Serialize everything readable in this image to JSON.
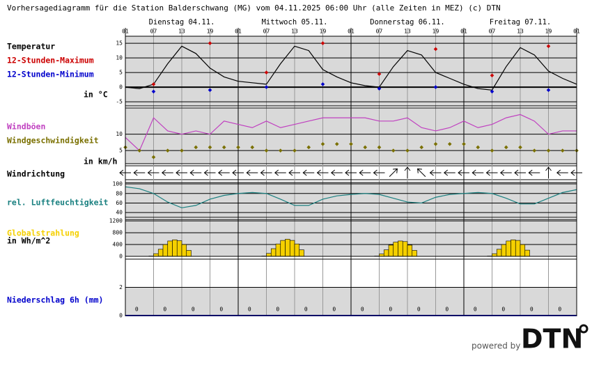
{
  "title": "Vorhersagediagramm für die Station Balderschwang (MG) vom 04.11.2025 06:00 Uhr (alle Zeiten in MEZ)   (c) DTN",
  "time_axis": {
    "xlim": [
      "04.11. 01",
      "08.11. 01"
    ],
    "days": [
      "Dienstag 04.11.",
      "Mittwoch 05.11.",
      "Donnerstag 06.11.",
      "Freitag 07.11."
    ],
    "hour_ticks": [
      "01",
      "07",
      "13",
      "19",
      "01",
      "07",
      "13",
      "19",
      "01",
      "07",
      "13",
      "19",
      "01",
      "07",
      "13",
      "19",
      "01"
    ]
  },
  "x": [
    "04.11. 01",
    "04.11. 04",
    "04.11. 07",
    "04.11. 10",
    "04.11. 13",
    "04.11. 16",
    "04.11. 19",
    "04.11. 22",
    "05.11. 01",
    "05.11. 04",
    "05.11. 07",
    "05.11. 10",
    "05.11. 13",
    "05.11. 16",
    "05.11. 19",
    "05.11. 22",
    "06.11. 01",
    "06.11. 04",
    "06.11. 07",
    "06.11. 10",
    "06.11. 13",
    "06.11. 16",
    "06.11. 19",
    "06.11. 22",
    "07.11. 01",
    "07.11. 04",
    "07.11. 07",
    "07.11. 10",
    "07.11. 13",
    "07.11. 16",
    "07.11. 19",
    "07.11. 22",
    "08.11. 01"
  ],
  "chart_data": [
    {
      "type": "line",
      "unit": "in °C",
      "ylim": [
        -6.4,
        17.4
      ],
      "yticks": [
        -5,
        0,
        5,
        10,
        15
      ],
      "grid": true,
      "series": [
        {
          "name": "Temperatur",
          "type": "line",
          "color": "#000000",
          "values": [
            0,
            -0.5,
            1,
            8,
            14,
            11.5,
            6.5,
            3.5,
            2,
            1.5,
            1,
            8,
            14,
            12.5,
            6,
            3.5,
            1.5,
            0.5,
            0,
            7,
            12.5,
            11,
            5,
            3,
            1,
            -0.5,
            -1,
            7,
            13.5,
            11,
            5.5,
            3,
            1
          ]
        },
        {
          "name": "12-Stunden-Maximum",
          "type": "scatter",
          "color": "#cc0000",
          "x": [
            "04.11. 07",
            "04.11. 19",
            "05.11. 07",
            "05.11. 19",
            "06.11. 07",
            "06.11. 19",
            "07.11. 07",
            "07.11. 19"
          ],
          "values": [
            1,
            15,
            5,
            15,
            4.5,
            13,
            4,
            14
          ]
        },
        {
          "name": "12-Stunden-Minimum",
          "type": "scatter",
          "color": "#0000cc",
          "x": [
            "04.11. 07",
            "04.11. 19",
            "05.11. 07",
            "05.11. 19",
            "06.11. 07",
            "06.11. 19",
            "07.11. 07",
            "07.11. 19"
          ],
          "values": [
            -1.5,
            -1,
            0,
            1,
            -0.5,
            0,
            -1.5,
            -1
          ]
        }
      ]
    },
    {
      "type": "line",
      "unit": "in km/h",
      "ylim": [
        1,
        18
      ],
      "yticks": [
        5,
        10
      ],
      "grid": true,
      "series": [
        {
          "name": "Windböen",
          "type": "line",
          "color": "#c040c0",
          "values": [
            9,
            5,
            15,
            11,
            10,
            11,
            10,
            14,
            13,
            12,
            14,
            12,
            13,
            14,
            15,
            15,
            15,
            15,
            14,
            14,
            15,
            12,
            11,
            12,
            14,
            12,
            13,
            15,
            16,
            14,
            10,
            11,
            11
          ]
        },
        {
          "name": "Windgeschwindigkeit",
          "type": "scatter",
          "color": "#7a7000",
          "values": [
            6,
            5,
            3,
            5,
            5,
            6,
            6,
            6,
            6,
            6,
            5,
            5,
            5,
            6,
            7,
            7,
            7,
            6,
            6,
            5,
            5,
            6,
            7,
            7,
            7,
            6,
            5,
            6,
            6,
            5,
            5,
            5,
            5
          ]
        }
      ]
    },
    {
      "type": "arrows",
      "series": [
        {
          "name": "Windrichtung",
          "color": "#000000",
          "values": [
            90,
            90,
            90,
            90,
            90,
            90,
            90,
            90,
            90,
            90,
            90,
            90,
            90,
            90,
            90,
            90,
            90,
            90,
            90,
            225,
            180,
            135,
            90,
            90,
            90,
            90,
            90,
            90,
            90,
            90,
            180,
            90,
            90
          ]
        }
      ]
    },
    {
      "type": "line",
      "ylim": [
        30,
        103
      ],
      "yticks": [
        40,
        60,
        80,
        100
      ],
      "grid": true,
      "series": [
        {
          "name": "rel. Luftfeuchtigkeit",
          "type": "line",
          "color": "#1a8080",
          "values": [
            94,
            90,
            80,
            62,
            50,
            55,
            68,
            76,
            80,
            82,
            80,
            68,
            55,
            55,
            68,
            75,
            78,
            80,
            78,
            70,
            62,
            60,
            72,
            78,
            80,
            82,
            80,
            70,
            58,
            58,
            70,
            82,
            88
          ]
        }
      ]
    },
    {
      "type": "bar",
      "unit": "in Wh/m^2",
      "ylim": [
        0,
        1250
      ],
      "yticks": [
        0,
        400,
        800,
        1200
      ],
      "grid": true,
      "series": [
        {
          "name": "Globalstrahlung",
          "color": "#f5d000",
          "x": [
            "04.11. 06",
            "04.11. 07",
            "04.11. 08",
            "04.11. 09",
            "04.11. 10",
            "04.11. 11",
            "04.11. 12",
            "04.11. 13",
            "04.11. 14",
            "05.11. 06",
            "05.11. 07",
            "05.11. 08",
            "05.11. 09",
            "05.11. 10",
            "05.11. 11",
            "05.11. 12",
            "05.11. 13",
            "05.11. 14",
            "06.11. 06",
            "06.11. 07",
            "06.11. 08",
            "06.11. 09",
            "06.11. 10",
            "06.11. 11",
            "06.11. 12",
            "06.11. 13",
            "06.11. 14",
            "07.11. 06",
            "07.11. 07",
            "07.11. 08",
            "07.11. 09",
            "07.11. 10",
            "07.11. 11",
            "07.11. 12",
            "07.11. 13",
            "07.11. 14"
          ],
          "values": [
            10,
            90,
            240,
            400,
            520,
            560,
            530,
            400,
            200,
            10,
            100,
            260,
            420,
            540,
            580,
            540,
            420,
            220,
            10,
            80,
            220,
            380,
            480,
            520,
            500,
            380,
            200,
            10,
            90,
            240,
            400,
            520,
            560,
            540,
            400,
            210
          ]
        }
      ]
    },
    {
      "type": "bar",
      "ylim": [
        0,
        4
      ],
      "yticks": [
        0,
        2
      ],
      "grid": true,
      "data_labels": true,
      "series": [
        {
          "name": "Niederschlag 6h (mm)",
          "color": "#0000cc",
          "x": [
            "04.11. 01",
            "04.11. 07",
            "04.11. 13",
            "04.11. 19",
            "05.11. 01",
            "05.11. 07",
            "05.11. 13",
            "05.11. 19",
            "06.11. 01",
            "06.11. 07",
            "06.11. 13",
            "06.11. 19",
            "07.11. 01",
            "07.11. 07",
            "07.11. 13",
            "07.11. 19"
          ],
          "values": [
            0,
            0,
            0,
            0,
            0,
            0,
            0,
            0,
            0,
            0,
            0,
            0,
            0,
            0,
            0,
            0
          ]
        }
      ]
    }
  ],
  "footer": {
    "powered_by": "powered by",
    "logo": "DTN"
  }
}
